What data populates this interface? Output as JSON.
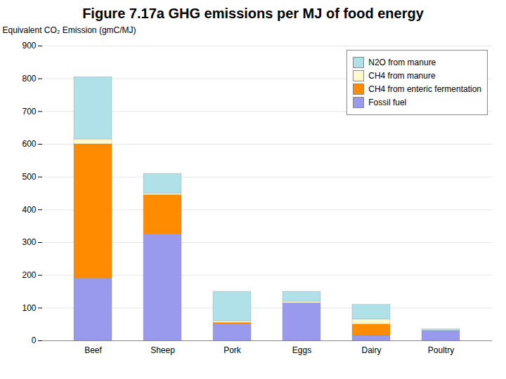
{
  "chart_data": {
    "type": "bar",
    "stacked": true,
    "title": "Figure 7.17a GHG emissions per MJ of food energy",
    "categories": [
      "Beef",
      "Sheep",
      "Pork",
      "Eggs",
      "Dairy",
      "Poultry"
    ],
    "ylabel": "Equivalent CO₂ Emission (gmC/MJ)",
    "ylim": [
      0,
      900
    ],
    "yticks": [
      0,
      100,
      200,
      300,
      400,
      500,
      600,
      700,
      800,
      900
    ],
    "grid": true,
    "legend": "upper right",
    "series": [
      {
        "name": "Fossil fuel",
        "color": "#9999EE",
        "values": [
          190,
          325,
          50,
          115,
          15,
          30
        ]
      },
      {
        "name": "CH4 from enteric fermentation",
        "color": "#FF8C00",
        "values": [
          410,
          120,
          5,
          0,
          35,
          0
        ]
      },
      {
        "name": "CH4 from manure",
        "color": "#FFFACD",
        "values": [
          15,
          5,
          5,
          5,
          15,
          0
        ]
      },
      {
        "name": "N2O from manure",
        "color": "#B0E0E8",
        "values": [
          190,
          60,
          90,
          30,
          45,
          5
        ]
      }
    ]
  }
}
